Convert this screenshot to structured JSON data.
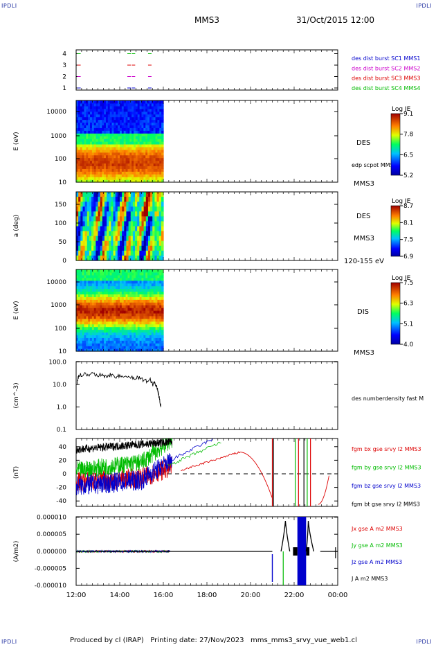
{
  "corners": {
    "tl": "IPDLI",
    "tr": "IPDLI",
    "bl": "IPDLI",
    "br": "IPDLI"
  },
  "header": {
    "spacecraft": "MMS3",
    "datetime": "31/Oct/2015 12:00"
  },
  "footer": {
    "text": "Produced by cl (IRAP)   Printing date: 27/Nov/2023   mms_mms3_srvy_vue_web1.cl"
  },
  "colors": {
    "blue": "#0000cc",
    "magenta": "#cc00cc",
    "red": "#dd0000",
    "green": "#00bb00",
    "black": "#000000"
  },
  "chart_data": [
    {
      "type": "scatter",
      "panel": "burst",
      "yticks": [
        "1",
        "2",
        "3",
        "4"
      ],
      "legend": [
        {
          "label": "des dist burst SC1 MMS1",
          "color": "#0000cc"
        },
        {
          "label": "des dist burst SC2 MMS2",
          "color": "#cc00cc"
        },
        {
          "label": "des dist burst SC3 MMS3",
          "color": "#dd0000"
        },
        {
          "label": "des dist burst SC4 MMS4",
          "color": "#00bb00"
        }
      ],
      "series": [
        {
          "sc": 1,
          "x": [
            12.05,
            14.35,
            14.55,
            15.3
          ]
        },
        {
          "sc": 2,
          "x": [
            12.05,
            14.35,
            14.55,
            15.3
          ]
        },
        {
          "sc": 3,
          "x": [
            12.05,
            14.35,
            14.55,
            15.3
          ]
        },
        {
          "sc": 4,
          "x": [
            12.05,
            14.35,
            14.55,
            15.3
          ]
        }
      ]
    },
    {
      "type": "heatmap",
      "panel": "des-energy",
      "ylabel": "E (eV)",
      "yticks": [
        "10",
        "100",
        "1000",
        "10000"
      ],
      "xrange": [
        "12:00",
        "16:00"
      ],
      "right_labels": [
        "DES",
        "edp scpot MMS3",
        "MMS3"
      ],
      "colorbar": {
        "title": "Log JE",
        "ticks": [
          "9.1",
          "7.8",
          "6.5",
          "5.2"
        ]
      }
    },
    {
      "type": "heatmap",
      "panel": "des-pitch",
      "ylabel": "a (deg)",
      "yticks": [
        "0",
        "50",
        "100",
        "150"
      ],
      "xrange": [
        "12:00",
        "16:00"
      ],
      "right_labels": [
        "DES",
        "MMS3",
        "120-155 eV"
      ],
      "colorbar": {
        "title": "Log JE",
        "ticks": [
          "8.7",
          "8.1",
          "7.5",
          "6.9"
        ]
      }
    },
    {
      "type": "heatmap",
      "panel": "dis-energy",
      "ylabel": "E (eV)",
      "yticks": [
        "10",
        "100",
        "1000",
        "10000"
      ],
      "xrange": [
        "12:00",
        "16:00"
      ],
      "right_labels": [
        "DIS",
        "MMS3"
      ],
      "colorbar": {
        "title": "Log JE",
        "ticks": [
          "7.5",
          "6.3",
          "5.1",
          "4.0"
        ]
      }
    },
    {
      "type": "line",
      "panel": "density",
      "ylabel": "(cm^-3)",
      "yticks": [
        "0.1",
        "1.0",
        "10.0",
        "100.0"
      ],
      "series": [
        {
          "name": "des numberdensity fast M",
          "x": [
            12.05,
            12.1,
            12.2,
            12.4,
            12.6,
            12.8,
            13.0,
            13.2,
            13.4,
            13.6,
            13.8,
            14.0,
            14.2,
            14.4,
            14.6,
            14.8,
            15.0,
            15.2,
            15.4,
            15.5,
            15.6,
            15.7,
            15.75,
            15.8,
            15.85,
            15.9
          ],
          "values": [
            12,
            22,
            26,
            28,
            25,
            30,
            27,
            26,
            24,
            27,
            23,
            22,
            25,
            21,
            19,
            22,
            18,
            14,
            16,
            10,
            12,
            8,
            5,
            3,
            1.5,
            0.8
          ]
        }
      ]
    },
    {
      "type": "line",
      "panel": "bfield",
      "ylabel": "(nT)",
      "yticks": [
        "-40",
        "-20",
        "0",
        "20",
        "40"
      ],
      "series": [
        {
          "name": "fgm bx gse srvy l2 MMS3",
          "color": "#dd0000"
        },
        {
          "name": "fgm by gse srvy l2 MMS3",
          "color": "#00bb00"
        },
        {
          "name": "fgm bz gse srvy l2 MMS3",
          "color": "#0000cc"
        },
        {
          "name": "fgm bt gse srvy l2 MMS3",
          "color": "#000000"
        }
      ]
    },
    {
      "type": "line",
      "panel": "current",
      "ylabel": "(A/m2)",
      "yticks": [
        "-0.000010",
        "-0.000005",
        "0.000000",
        "0.000005",
        "0.000010"
      ],
      "xticks": [
        "12:00",
        "14:00",
        "16:00",
        "18:00",
        "20:00",
        "22:00",
        "00:00"
      ],
      "series": [
        {
          "name": "Jx gse A m2 MMS3",
          "color": "#dd0000"
        },
        {
          "name": "Jy gse A m2 MMS3",
          "color": "#00bb00"
        },
        {
          "name": "Jz gse A m2 MMS3",
          "color": "#0000cc"
        },
        {
          "name": "J A m2 MMS3",
          "color": "#000000"
        }
      ]
    }
  ]
}
